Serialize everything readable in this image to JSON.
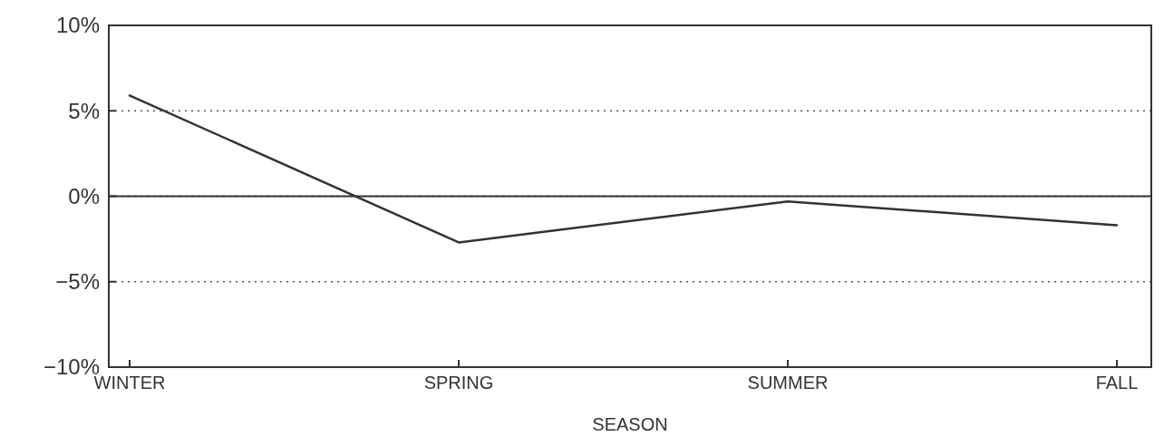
{
  "chart_data": {
    "type": "line",
    "xlabel": "SEASON",
    "categories": [
      "WINTER",
      "SPRING",
      "SUMMER",
      "FALL"
    ],
    "series": [
      {
        "color": "#333333",
        "values": [
          5.9,
          -2.7,
          -0.3,
          -1.7
        ]
      }
    ],
    "ylim": [
      -10,
      10
    ],
    "yticks": [
      {
        "value": -10,
        "label": "−10%"
      },
      {
        "value": -5,
        "label": "−5%"
      },
      {
        "value": 0,
        "label": "0%"
      },
      {
        "value": 5,
        "label": "5%"
      },
      {
        "value": 10,
        "label": "10%"
      }
    ],
    "grid": "y",
    "marker": "none",
    "line_style": "solid",
    "ref_lines": [
      {
        "axis": "y",
        "value": 0,
        "color": "#333333",
        "line_style": "solid"
      }
    ]
  }
}
